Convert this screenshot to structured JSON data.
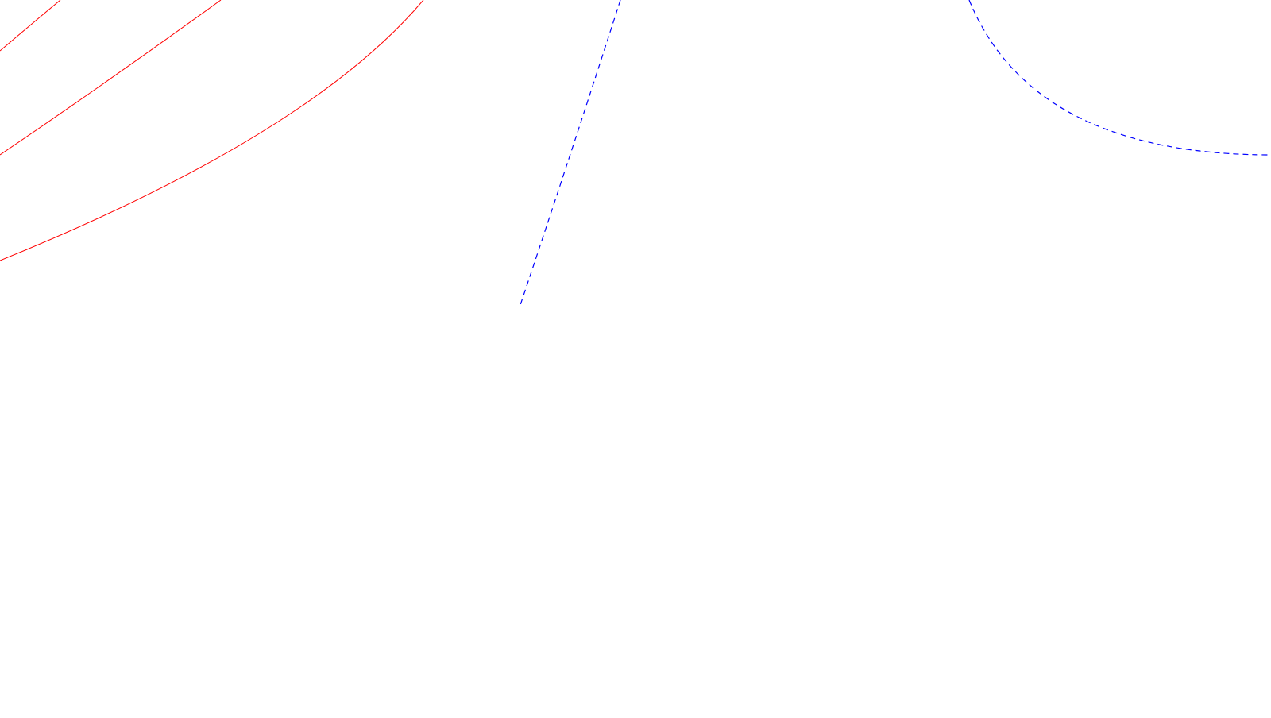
{
  "colors": {
    "background": "#ffffff",
    "solid_curves": "#ff0000",
    "dashed_curves": "#0000ff"
  },
  "curves": [
    {
      "name": "red-arc-1",
      "style": "solid",
      "color": "#ff0000"
    },
    {
      "name": "red-arc-2",
      "style": "solid",
      "color": "#ff0000"
    },
    {
      "name": "red-arc-3",
      "style": "solid",
      "color": "#ff0000"
    },
    {
      "name": "blue-dashed-line",
      "style": "dashed",
      "color": "#0000ff"
    },
    {
      "name": "blue-dashed-arc",
      "style": "dashed",
      "color": "#0000ff"
    }
  ]
}
